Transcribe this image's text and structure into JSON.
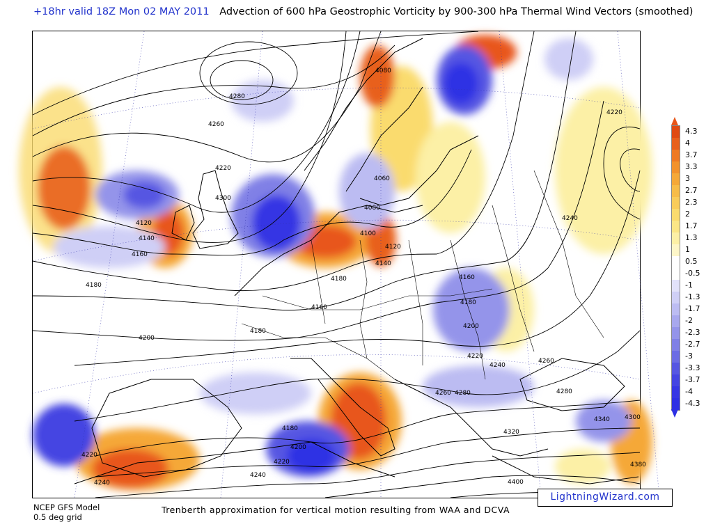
{
  "header": {
    "valid_text": "+18hr valid 18Z Mon 02 MAY 2011",
    "title": "Advection of 600 hPa Geostrophic Vorticity by 900-300 hPa Thermal Wind Vectors (smoothed)"
  },
  "footer": {
    "model_line1": "NCEP GFS Model",
    "model_line2": "0.5 deg grid",
    "description": "Trenberth approximation for vertical motion resulting from WAA and DCVA",
    "credit": "LightningWizard.com"
  },
  "legend": {
    "colors": {
      "strong_positive": "#e8561a",
      "positive": "#f5b43a",
      "weak_positive": "#f9eea0",
      "neutral": "#ffffff",
      "weak_negative": "#c9c9f5",
      "negative": "#8c8cea",
      "strong_negative": "#2e30e4"
    },
    "labels": [
      "4.3",
      "4",
      "3.7",
      "3.3",
      "3",
      "2.7",
      "2.3",
      "2",
      "1.7",
      "1.3",
      "1",
      "0.5",
      "-0.5",
      "-1",
      "-1.3",
      "-1.7",
      "-2",
      "-2.3",
      "-2.7",
      "-3",
      "-3.3",
      "-3.7",
      "-4",
      "-4.3"
    ],
    "bins": [
      {
        "label": "4.3",
        "color": "#e04a12"
      },
      {
        "label": "4",
        "color": "#e8601c"
      },
      {
        "label": "3.7",
        "color": "#ee7a24"
      },
      {
        "label": "3.3",
        "color": "#f2922c"
      },
      {
        "label": "3",
        "color": "#f5a838"
      },
      {
        "label": "2.7",
        "color": "#f7bc48"
      },
      {
        "label": "2.3",
        "color": "#f9cc5a"
      },
      {
        "label": "2",
        "color": "#fadb6e"
      },
      {
        "label": "1.7",
        "color": "#fbe686"
      },
      {
        "label": "1.3",
        "color": "#fcf0a6"
      },
      {
        "label": "1",
        "color": "#fdf6c8"
      },
      {
        "label": "0.5",
        "color": "#ffffff"
      },
      {
        "label": "-0.5",
        "color": "#ffffff"
      },
      {
        "label": "-1",
        "color": "#e2e2fa"
      },
      {
        "label": "-1.3",
        "color": "#cfcff6"
      },
      {
        "label": "-1.7",
        "color": "#bcbcf2"
      },
      {
        "label": "-2",
        "color": "#a8a8ee"
      },
      {
        "label": "-2.3",
        "color": "#9494ea"
      },
      {
        "label": "-2.7",
        "color": "#8080e6"
      },
      {
        "label": "-3",
        "color": "#6c6ce4"
      },
      {
        "label": "-3.3",
        "color": "#5656e2"
      },
      {
        "label": "-3.7",
        "color": "#4444e2"
      },
      {
        "label": "-4",
        "color": "#3636e4"
      },
      {
        "label": "-4.3",
        "color": "#2e30e4"
      }
    ]
  },
  "map": {
    "contour_labels": [
      "4280",
      "4260",
      "4220",
      "4300",
      "4120",
      "4140",
      "4160",
      "4180",
      "4200",
      "4180",
      "4160",
      "4180",
      "4120",
      "4140",
      "4100",
      "4080",
      "4060",
      "4080",
      "4160",
      "4180",
      "4200",
      "4220",
      "4240",
      "4260",
      "4280",
      "4300",
      "4320",
      "4340",
      "4380",
      "4400",
      "4220",
      "4240",
      "4200",
      "4180",
      "4240",
      "4220",
      "4220",
      "4240",
      "4260",
      "4280"
    ]
  }
}
